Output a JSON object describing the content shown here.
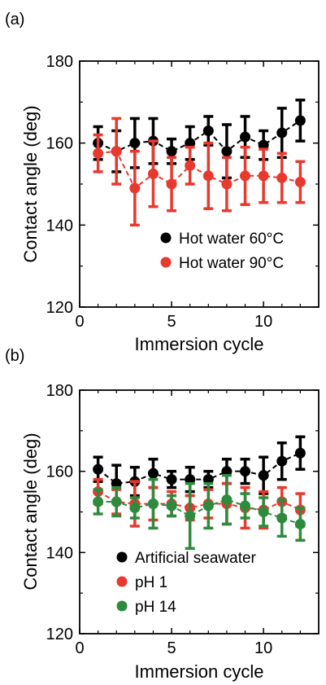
{
  "chart_data": [
    {
      "panel_label": "(a)",
      "type": "scatter",
      "xlabel": "Immersion cycle",
      "ylabel": "Contact angle (deg)",
      "xlim": [
        0,
        13
      ],
      "ylim": [
        120,
        180
      ],
      "xticks": [
        0,
        5,
        10
      ],
      "yticks": [
        120,
        140,
        160,
        180
      ],
      "grid": false,
      "legend_position": "bottom-right",
      "x": [
        1,
        2,
        3,
        4,
        5,
        6,
        7,
        8,
        9,
        10,
        11,
        12
      ],
      "series": [
        {
          "name": "Hot water 60°C",
          "color": "#000000",
          "values": [
            160,
            158,
            160,
            160.5,
            158,
            160,
            163,
            158,
            161.5,
            159.5,
            162.5,
            165.5
          ],
          "errors": [
            4,
            5,
            6,
            5.5,
            3,
            4,
            3.5,
            6.5,
            5,
            3.5,
            6,
            5
          ]
        },
        {
          "name": "Hot water 90°C",
          "color": "#e8392f",
          "values": [
            157.5,
            158,
            149,
            152.5,
            150,
            154.5,
            152,
            150,
            152,
            152,
            151.5,
            150.5
          ],
          "errors": [
            4.5,
            8,
            9,
            8,
            6.5,
            4.5,
            8,
            6.5,
            7,
            6.5,
            6,
            5
          ]
        }
      ]
    },
    {
      "panel_label": "(b)",
      "type": "scatter",
      "xlabel": "Immersion cycle",
      "ylabel": "Contact angle (deg)",
      "xlim": [
        0,
        13
      ],
      "ylim": [
        120,
        180
      ],
      "xticks": [
        0,
        5,
        10
      ],
      "yticks": [
        120,
        140,
        160,
        180
      ],
      "grid": false,
      "legend_position": "bottom-left",
      "x": [
        1,
        2,
        3,
        4,
        5,
        6,
        7,
        8,
        9,
        10,
        11,
        12
      ],
      "series": [
        {
          "name": "Artificial seawater",
          "color": "#000000",
          "values": [
            160.5,
            157,
            157.5,
            159.5,
            158,
            158,
            158,
            160,
            160,
            159,
            162.5,
            164.5
          ],
          "errors": [
            3,
            4.5,
            3.5,
            3.5,
            2,
            3,
            2,
            3,
            3,
            4.5,
            4.5,
            4
          ]
        },
        {
          "name": "pH 1",
          "color": "#e8392f",
          "values": [
            155,
            152.5,
            152,
            152,
            152,
            151,
            152,
            152,
            151,
            150.5,
            152.5,
            150.5
          ],
          "errors": [
            3,
            3,
            5.5,
            4,
            3,
            3,
            3.5,
            5,
            5,
            4.5,
            3.5,
            4
          ]
        },
        {
          "name": "pH 14",
          "color": "#2e8b3e",
          "values": [
            152.5,
            152.5,
            151,
            152,
            151.5,
            149,
            151.5,
            153,
            151.5,
            150,
            148.5,
            147
          ],
          "errors": [
            3,
            3.5,
            2.5,
            6,
            2.5,
            8,
            5.5,
            6,
            3,
            3.5,
            4.5,
            4
          ]
        }
      ]
    }
  ]
}
